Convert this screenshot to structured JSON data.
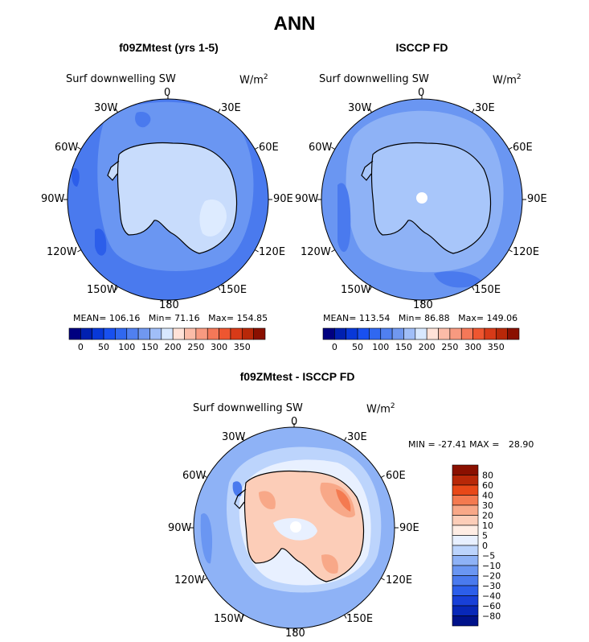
{
  "title": "ANN",
  "colors": {
    "abs_scale": [
      "#000080",
      "#0020B0",
      "#0838D8",
      "#1850F0",
      "#3068F0",
      "#5080F0",
      "#7098F0",
      "#A0BEF8",
      "#D8E8FF",
      "#FFE2D8",
      "#FBBCA8",
      "#F89A80",
      "#F47858",
      "#EE5630",
      "#D83A18",
      "#B82808",
      "#8A1000"
    ],
    "diff_scale": [
      "#8A1000",
      "#B82808",
      "#E84818",
      "#F47A50",
      "#F8A888",
      "#FCCDB8",
      "#FFEDE4",
      "#E8F0FF",
      "#BCD4FC",
      "#8EB2F6",
      "#6A96F2",
      "#4A7AEE",
      "#2C5EEA",
      "#1840D8",
      "#0828B8",
      "#00128A"
    ]
  },
  "panels": [
    {
      "title": "f09ZMtest (yrs 1-5)",
      "variable": "Surf downwelling SW",
      "units": "W/m",
      "units_exp": "2",
      "stats": {
        "mean_label": "MEAN=",
        "mean": "106.16",
        "min_label": "Min=",
        "min": "71.16",
        "max_label": "Max=",
        "max": "154.85"
      },
      "lon_labels": [
        "0",
        "30E",
        "60E",
        "90E",
        "120E",
        "150E",
        "180",
        "150W",
        "120W",
        "90W",
        "60W",
        "30W"
      ],
      "colorbar_ticks": [
        "0",
        "50",
        "100",
        "150",
        "200",
        "250",
        "300",
        "350"
      ]
    },
    {
      "title": "ISCCP FD",
      "variable": "Surf downwelling SW",
      "units": "W/m",
      "units_exp": "2",
      "stats": {
        "mean_label": "MEAN=",
        "mean": "113.54",
        "min_label": "Min=",
        "min": "86.88",
        "max_label": "Max=",
        "max": "149.06"
      },
      "lon_labels": [
        "0",
        "30E",
        "60E",
        "90E",
        "120E",
        "150E",
        "180",
        "150W",
        "120W",
        "90W",
        "60W",
        "30W"
      ],
      "colorbar_ticks": [
        "0",
        "50",
        "100",
        "150",
        "200",
        "250",
        "300",
        "350"
      ]
    },
    {
      "title": "f09ZMtest - ISCCP FD",
      "variable": "Surf downwelling SW",
      "units": "W/m",
      "units_exp": "2",
      "stats": {
        "min_label": "MIN =",
        "min": "-27.41",
        "max_label": "MAX =",
        "max": "28.90"
      },
      "lon_labels": [
        "0",
        "30E",
        "60E",
        "90E",
        "120E",
        "150E",
        "180",
        "150W",
        "120W",
        "90W",
        "60W",
        "30W"
      ],
      "colorbar_ticks": [
        "80",
        "60",
        "40",
        "30",
        "20",
        "10",
        "5",
        "0",
        "−5",
        "−10",
        "−20",
        "−30",
        "−40",
        "−60",
        "−80"
      ]
    }
  ],
  "chart_data": [
    {
      "type": "heatmap",
      "projection": "south-polar-stereographic",
      "title": "f09ZMtest (yrs 1-5)",
      "field": "Surf downwelling SW",
      "units": "W/m2",
      "mean": 106.16,
      "min": 71.16,
      "max": 154.85,
      "contour_levels": [
        0,
        25,
        50,
        75,
        100,
        125,
        150,
        175,
        200,
        225,
        250,
        275,
        300,
        325,
        350
      ]
    },
    {
      "type": "heatmap",
      "projection": "south-polar-stereographic",
      "title": "ISCCP FD",
      "field": "Surf downwelling SW",
      "units": "W/m2",
      "mean": 113.54,
      "min": 86.88,
      "max": 149.06,
      "contour_levels": [
        0,
        25,
        50,
        75,
        100,
        125,
        150,
        175,
        200,
        225,
        250,
        275,
        300,
        325,
        350
      ]
    },
    {
      "type": "heatmap",
      "projection": "south-polar-stereographic",
      "title": "f09ZMtest - ISCCP FD",
      "field": "Surf downwelling SW",
      "units": "W/m2",
      "min": -27.41,
      "max": 28.9,
      "contour_levels": [
        -80,
        -60,
        -40,
        -30,
        -20,
        -10,
        -5,
        0,
        5,
        10,
        20,
        30,
        40,
        60,
        80
      ]
    }
  ]
}
